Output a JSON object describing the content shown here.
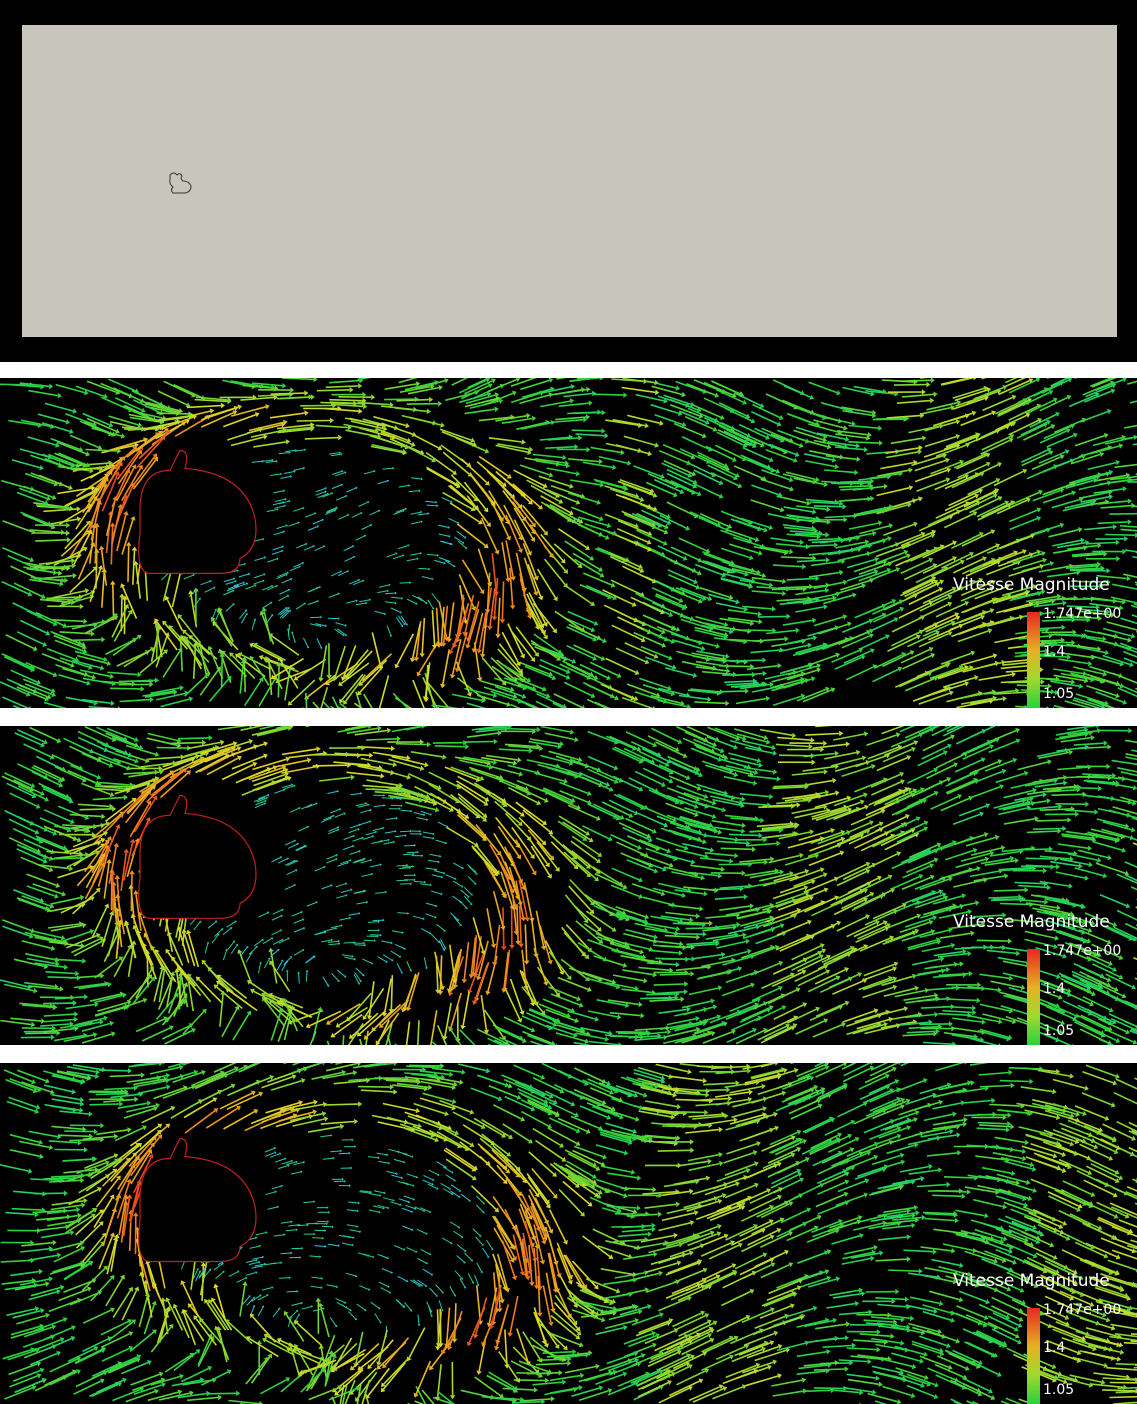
{
  "panels": [
    {
      "legend": {
        "title": "Vitesse Magnitude",
        "labels": [
          "1.747e+00",
          "1.4",
          "1.05"
        ]
      }
    },
    {
      "legend": {
        "title": "Vitesse Magnitude",
        "labels": [
          "1.747e+00",
          "1.4",
          "1.05"
        ]
      }
    },
    {
      "legend": {
        "title": "Vitesse Magnitude",
        "labels": [
          "1.747e+00",
          "1.4",
          "1.05"
        ]
      }
    }
  ]
}
